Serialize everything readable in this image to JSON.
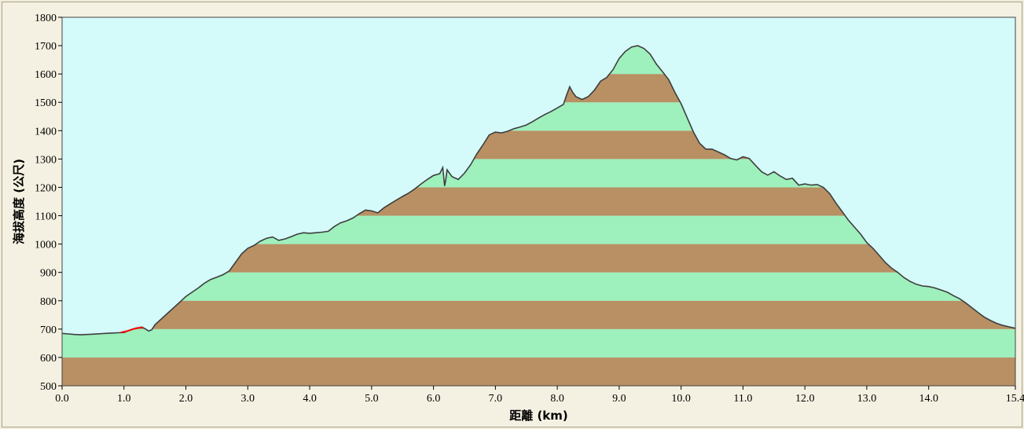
{
  "colors": {
    "sky": "#d4fafa",
    "band_green": "#9ef0bc",
    "band_brown": "#b89063",
    "profile_line": "#3e3e3e",
    "highlight": "#ff0000",
    "frame_bg": "#f5f1e2"
  },
  "chart_data": {
    "type": "area",
    "xlabel": "距離 (km)",
    "ylabel": "海拔高度 (公尺)",
    "xlim": [
      0,
      15.4
    ],
    "ylim": [
      500,
      1800
    ],
    "x_ticks": [
      "0.0",
      "1.0",
      "2.0",
      "3.0",
      "4.0",
      "5.0",
      "6.0",
      "7.0",
      "8.0",
      "9.0",
      "10.0",
      "11.0",
      "12.0",
      "13.0",
      "14.0",
      "15.4"
    ],
    "x_tick_values": [
      0,
      1,
      2,
      3,
      4,
      5,
      6,
      7,
      8,
      9,
      10,
      11,
      12,
      13,
      14,
      15.4
    ],
    "y_ticks": [
      "500",
      "600",
      "700",
      "800",
      "900",
      "1000",
      "1100",
      "1200",
      "1300",
      "1400",
      "1500",
      "1600",
      "1700",
      "1800"
    ],
    "y_tick_values": [
      500,
      600,
      700,
      800,
      900,
      1000,
      1100,
      1200,
      1300,
      1400,
      1500,
      1600,
      1700,
      1800
    ],
    "band_step": 100,
    "grid": false,
    "highlight_segment": {
      "x": [
        0.95,
        1.05,
        1.15,
        1.25,
        1.3
      ],
      "y": [
        688,
        693,
        700,
        705,
        707
      ]
    },
    "series": [
      {
        "x": [
          0.0,
          0.1,
          0.2,
          0.3,
          0.5,
          0.7,
          0.8,
          0.9,
          1.0,
          1.1,
          1.2,
          1.3,
          1.35,
          1.4,
          1.45,
          1.5,
          1.6,
          1.7,
          1.8,
          1.9,
          2.0,
          2.1,
          2.2,
          2.3,
          2.4,
          2.5,
          2.6,
          2.7,
          2.8,
          2.9,
          3.0,
          3.1,
          3.2,
          3.3,
          3.4,
          3.5,
          3.6,
          3.7,
          3.8,
          3.9,
          4.0,
          4.1,
          4.2,
          4.3,
          4.4,
          4.5,
          4.6,
          4.7,
          4.8,
          4.9,
          5.0,
          5.1,
          5.2,
          5.3,
          5.4,
          5.5,
          5.6,
          5.7,
          5.8,
          5.9,
          6.0,
          6.1,
          6.15,
          6.18,
          6.2,
          6.22,
          6.3,
          6.4,
          6.5,
          6.6,
          6.7,
          6.8,
          6.9,
          7.0,
          7.1,
          7.2,
          7.3,
          7.4,
          7.5,
          7.6,
          7.7,
          7.8,
          7.9,
          8.0,
          8.1,
          8.15,
          8.2,
          8.25,
          8.3,
          8.4,
          8.5,
          8.6,
          8.7,
          8.8,
          8.9,
          9.0,
          9.1,
          9.2,
          9.3,
          9.4,
          9.5,
          9.6,
          9.7,
          9.8,
          9.9,
          10.0,
          10.1,
          10.2,
          10.3,
          10.4,
          10.5,
          10.6,
          10.7,
          10.8,
          10.9,
          11.0,
          11.1,
          11.2,
          11.3,
          11.4,
          11.5,
          11.6,
          11.7,
          11.8,
          11.9,
          12.0,
          12.1,
          12.2,
          12.3,
          12.4,
          12.5,
          12.6,
          12.7,
          12.8,
          12.9,
          13.0,
          13.1,
          13.2,
          13.3,
          13.4,
          13.5,
          13.6,
          13.7,
          13.8,
          13.9,
          14.0,
          14.1,
          14.2,
          14.3,
          14.4,
          14.5,
          14.6,
          14.7,
          14.8,
          14.9,
          15.0,
          15.1,
          15.2,
          15.3,
          15.4
        ],
        "y": [
          685,
          683,
          681,
          680,
          682,
          685,
          686,
          687,
          688,
          697,
          704,
          706,
          700,
          693,
          698,
          715,
          735,
          755,
          775,
          795,
          815,
          830,
          845,
          862,
          875,
          883,
          892,
          905,
          935,
          965,
          985,
          995,
          1010,
          1020,
          1025,
          1013,
          1018,
          1026,
          1035,
          1040,
          1038,
          1040,
          1042,
          1045,
          1062,
          1075,
          1082,
          1092,
          1107,
          1120,
          1117,
          1110,
          1128,
          1142,
          1155,
          1168,
          1180,
          1195,
          1212,
          1228,
          1242,
          1248,
          1270,
          1205,
          1230,
          1262,
          1238,
          1228,
          1250,
          1280,
          1318,
          1350,
          1385,
          1395,
          1392,
          1398,
          1407,
          1413,
          1420,
          1432,
          1445,
          1457,
          1468,
          1480,
          1493,
          1525,
          1555,
          1535,
          1520,
          1510,
          1520,
          1543,
          1575,
          1588,
          1615,
          1655,
          1680,
          1695,
          1700,
          1690,
          1670,
          1635,
          1608,
          1580,
          1535,
          1495,
          1445,
          1395,
          1355,
          1335,
          1335,
          1325,
          1315,
          1302,
          1297,
          1308,
          1302,
          1278,
          1255,
          1243,
          1255,
          1240,
          1228,
          1232,
          1208,
          1212,
          1208,
          1210,
          1200,
          1178,
          1145,
          1115,
          1085,
          1060,
          1035,
          1005,
          985,
          960,
          935,
          915,
          900,
          882,
          868,
          858,
          852,
          850,
          845,
          838,
          830,
          818,
          807,
          792,
          775,
          758,
          742,
          730,
          720,
          713,
          708,
          703
        ]
      }
    ]
  }
}
